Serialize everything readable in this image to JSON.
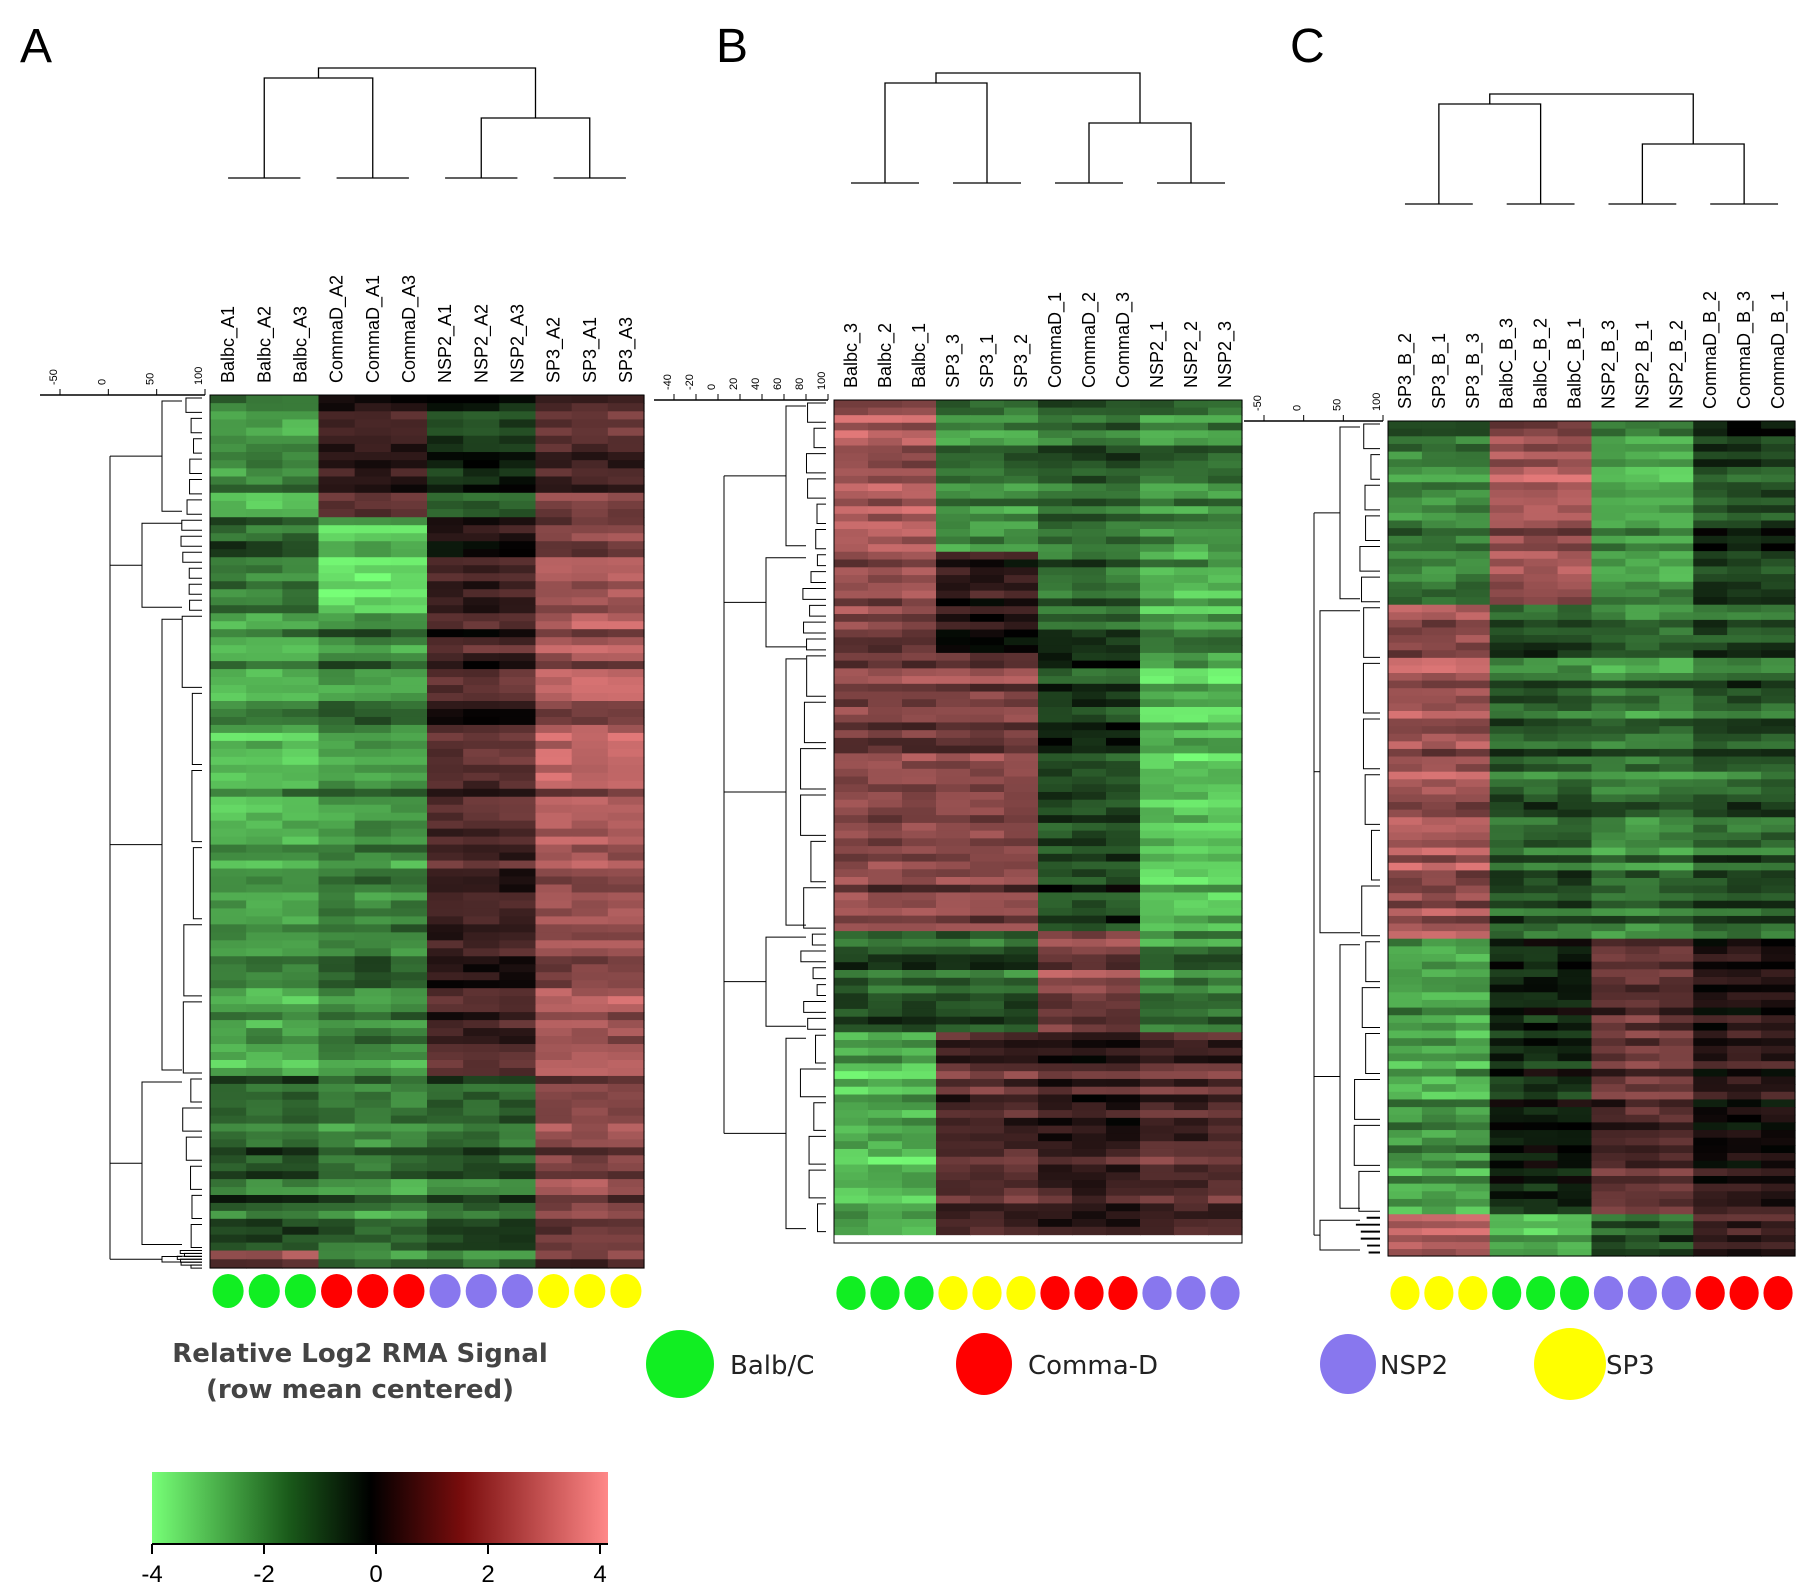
{
  "colors": {
    "balb": "#11ee22",
    "comma": "#ff0000",
    "nsp2": "#8877ee",
    "sp3": "#ffff00",
    "heat_low": "#77ff77",
    "heat_mid": "#000000",
    "heat_high": "#ff8888"
  },
  "legend": {
    "title_line1": "Relative Log2 RMA Signal",
    "title_line2": "(row mean centered)",
    "groups": [
      {
        "label": "Balb/C",
        "color": "#11ee22"
      },
      {
        "label": "Comma-D",
        "color": "#ff0000"
      },
      {
        "label": "NSP2",
        "color": "#8877ee"
      },
      {
        "label": "SP3",
        "color": "#ffff00"
      }
    ],
    "colorbar": {
      "min": -4,
      "max": 4,
      "ticks": [
        "-4",
        "-2",
        "0",
        "2",
        "4"
      ]
    }
  },
  "chart_data": [
    {
      "type": "heatmap",
      "panel": "A",
      "columns": [
        "Balbc_A1",
        "Balbc_A2",
        "Balbc_A3",
        "CommaD_A2",
        "CommaD_A1",
        "CommaD_A3",
        "NSP2_A1",
        "NSP2_A2",
        "NSP2_A3",
        "SP3_A2",
        "SP3_A1",
        "SP3_A3"
      ],
      "groups": [
        "balb",
        "balb",
        "balb",
        "comma",
        "comma",
        "comma",
        "nsp2",
        "nsp2",
        "nsp2",
        "sp3",
        "sp3",
        "sp3"
      ],
      "scale_ticks": [
        "-50",
        "0",
        "50",
        "100"
      ],
      "blocks": [
        {
          "rows": 0.14,
          "levels": [
            -2.5,
            -2.5,
            -2.5,
            1,
            1,
            1,
            -1,
            -1,
            -1,
            1.5,
            1.5,
            1.5
          ]
        },
        {
          "rows": 0.11,
          "levels": [
            -1.5,
            -1.5,
            -1.5,
            -3,
            -3,
            -3,
            0.5,
            0.5,
            0.5,
            2,
            2,
            2
          ]
        },
        {
          "rows": 0.53,
          "levels": [
            -2.5,
            -2.5,
            -2.5,
            -2,
            -2,
            -2,
            1,
            1,
            1,
            2.5,
            2.5,
            2.5
          ]
        },
        {
          "rows": 0.2,
          "levels": [
            -1.5,
            -1.5,
            -1.5,
            -2,
            -2,
            -2,
            -1.5,
            -1.5,
            -1.5,
            2,
            2,
            2
          ]
        },
        {
          "rows": 0.02,
          "levels": [
            2,
            2,
            2,
            -2,
            -2,
            -2,
            -2,
            -2,
            -2,
            1.5,
            1.5,
            1.5
          ]
        }
      ]
    },
    {
      "type": "heatmap",
      "panel": "B",
      "columns": [
        "Balbc_3",
        "Balbc_2",
        "Balbc_1",
        "SP3_3",
        "SP3_1",
        "SP3_2",
        "CommaD_1",
        "CommaD_2",
        "CommaD_3",
        "NSP2_1",
        "NSP2_2",
        "NSP2_3"
      ],
      "groups": [
        "balb",
        "balb",
        "balb",
        "sp3",
        "sp3",
        "sp3",
        "comma",
        "comma",
        "comma",
        "nsp2",
        "nsp2",
        "nsp2"
      ],
      "scale_ticks": [
        "-40",
        "-20",
        "0",
        "20",
        "40",
        "60",
        "80",
        "100"
      ],
      "blocks": [
        {
          "rows": 0.18,
          "levels": [
            2.5,
            2.5,
            2.5,
            -2,
            -2,
            -2,
            -1.5,
            -1.5,
            -1.5,
            -2,
            -2,
            -2
          ]
        },
        {
          "rows": 0.12,
          "levels": [
            2,
            2,
            2,
            0.5,
            0.5,
            0.5,
            -1.5,
            -1.5,
            -1.5,
            -2.5,
            -2.5,
            -2.5
          ]
        },
        {
          "rows": 0.33,
          "levels": [
            2,
            2,
            2,
            2,
            2,
            2,
            -1,
            -1,
            -1,
            -3,
            -3,
            -3
          ]
        },
        {
          "rows": 0.12,
          "levels": [
            -1.5,
            -1.5,
            -1.5,
            -1.5,
            -1.5,
            -1.5,
            2,
            2,
            2,
            -2,
            -2,
            -2
          ]
        },
        {
          "rows": 0.24,
          "levels": [
            -3,
            -3,
            -3,
            1.5,
            1.5,
            1.5,
            1,
            1,
            1,
            1.5,
            1.5,
            1.5
          ]
        }
      ]
    },
    {
      "type": "heatmap",
      "panel": "C",
      "columns": [
        "SP3_B_2",
        "SP3_B_1",
        "SP3_B_3",
        "BalbC_B_3",
        "BalbC_B_2",
        "BalbC_B_1",
        "NSP2_B_3",
        "NSP2_B_1",
        "NSP2_B_2",
        "CommaD_B_2",
        "CommaD_B_3",
        "CommaD_B_1"
      ],
      "groups": [
        "sp3",
        "sp3",
        "sp3",
        "balb",
        "balb",
        "balb",
        "nsp2",
        "nsp2",
        "nsp2",
        "comma",
        "comma",
        "comma"
      ],
      "scale_ticks": [
        "-50",
        "0",
        "50",
        "100"
      ],
      "blocks": [
        {
          "rows": 0.22,
          "levels": [
            -2,
            -2,
            -2,
            2.5,
            2.5,
            2.5,
            -2.5,
            -2.5,
            -2.5,
            -1,
            -1,
            -1
          ]
        },
        {
          "rows": 0.4,
          "levels": [
            2.5,
            2.5,
            2.5,
            -1.5,
            -1.5,
            -1.5,
            -2,
            -2,
            -2,
            -1.5,
            -1.5,
            -1.5
          ]
        },
        {
          "rows": 0.33,
          "levels": [
            -2.5,
            -2.5,
            -2.5,
            -0.5,
            -0.5,
            -0.5,
            1.5,
            1.5,
            1.5,
            0.5,
            0.5,
            0.5
          ]
        },
        {
          "rows": 0.05,
          "levels": [
            3,
            3,
            3,
            -3,
            -3,
            -3,
            -1.5,
            -1.5,
            -1.5,
            1,
            1,
            1
          ]
        }
      ]
    }
  ]
}
